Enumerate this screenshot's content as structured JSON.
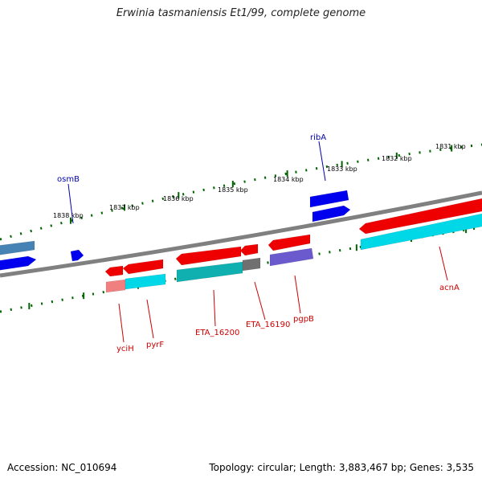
{
  "title": "Erwinia tasmaniensis Et1/99, complete genome",
  "footer": {
    "accession": "Accession: NC_010694",
    "summary": "Topology: circular; Length: 3,883,467 bp; Genes: 3,535"
  },
  "ruler_labels": [
    "1838 kbp",
    "1837 kbp",
    "1836 kbp",
    "1835 kbp",
    "1834 kbp",
    "1833 kbp",
    "1832 kbp",
    "1831 kbp"
  ],
  "gene_labels": {
    "forward": [
      "osmB",
      "ribA"
    ],
    "reverse": [
      "yciH",
      "pyrF",
      "ETA_16200",
      "ETA_16190",
      "pgpB",
      "acnA"
    ]
  },
  "colors": {
    "forward_gene": "#0000ee",
    "reverse_gene": "#ee0000",
    "forward_label": "#0000aa",
    "reverse_label": "#cc0000",
    "backbone": "#808080",
    "ticks": "#006400",
    "cds_cyan": "#00d8e8",
    "cds_teal": "#10b0b0",
    "cds_purple": "#6a5acd",
    "cds_pink": "#f08080",
    "cds_grey": "#707070",
    "cds_steel": "#4682b4"
  }
}
